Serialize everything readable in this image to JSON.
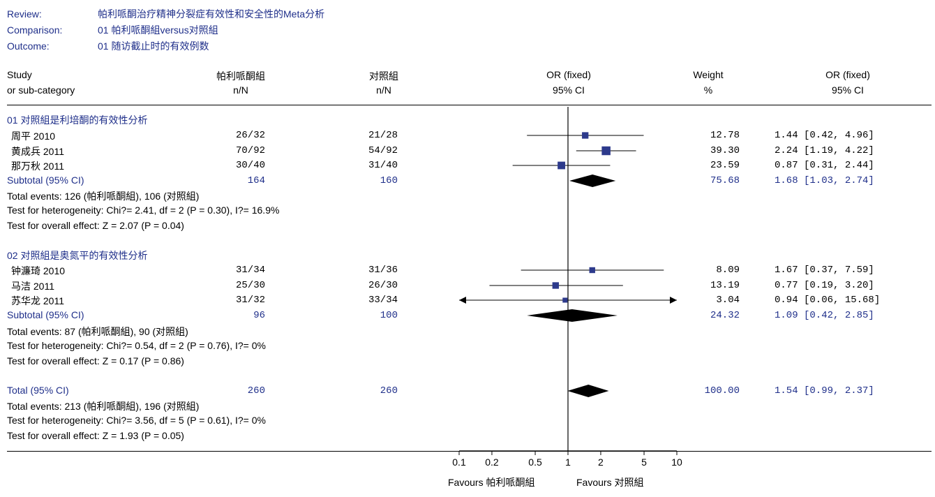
{
  "header": {
    "review_label": "Review:",
    "review_value": "帕利哌酮治疗精神分裂症有效性和安全性的Meta分析",
    "comparison_label": "Comparison:",
    "comparison_value": "01 帕利哌酮組versus对照組",
    "outcome_label": "Outcome:",
    "outcome_value": "01 随访截止时的有效例数"
  },
  "columns": {
    "study_1": "Study",
    "study_2": "or sub-category",
    "treat_1": "帕利哌酮組",
    "treat_2": "n/N",
    "ctrl_1": "对照組",
    "ctrl_2": "n/N",
    "or_1": "OR (fixed)",
    "or_2": "95% CI",
    "weight_1": "Weight",
    "weight_2": "%",
    "orci_1": "OR (fixed)",
    "orci_2": "95% CI"
  },
  "groups": [
    {
      "title": "01 对照組是利培酮的有效性分析",
      "studies": [
        {
          "name": "周平 2010",
          "treat": "26/32",
          "ctrl": "21/28",
          "weight": "12.78",
          "ci_text": "1.44 [0.42, 4.96]"
        },
        {
          "name": "黄成兵 2011",
          "treat": "70/92",
          "ctrl": "54/92",
          "weight": "39.30",
          "ci_text": "2.24 [1.19, 4.22]"
        },
        {
          "name": "那万秋 2011",
          "treat": "30/40",
          "ctrl": "31/40",
          "weight": "23.59",
          "ci_text": "0.87 [0.31, 2.44]"
        }
      ],
      "subtotal": {
        "label": "Subtotal (95% CI)",
        "treat": "164",
        "ctrl": "160",
        "weight": "75.68",
        "ci_text": "1.68 [1.03, 2.74]"
      },
      "events": "Total events: 126 (帕利哌酮組), 106 (对照組)",
      "heterogeneity": "Test for heterogeneity: Chi?= 2.41, df = 2 (P = 0.30), I?= 16.9%",
      "overall": "Test for overall effect: Z = 2.07 (P = 0.04)"
    },
    {
      "title": "02 对照組是奥氮平的有效性分析",
      "studies": [
        {
          "name": "钟濂琦 2010",
          "treat": "31/34",
          "ctrl": "31/36",
          "weight": "8.09",
          "ci_text": "1.67 [0.37, 7.59]"
        },
        {
          "name": "马洁 2011",
          "treat": "25/30",
          "ctrl": "26/30",
          "weight": "13.19",
          "ci_text": "0.77 [0.19, 3.20]"
        },
        {
          "name": "苏华龙 2011",
          "treat": "31/32",
          "ctrl": "33/34",
          "weight": "3.04",
          "ci_text": "0.94 [0.06, 15.68]"
        }
      ],
      "subtotal": {
        "label": "Subtotal (95% CI)",
        "treat": "96",
        "ctrl": "100",
        "weight": "24.32",
        "ci_text": "1.09 [0.42, 2.85]"
      },
      "events": "Total events: 87 (帕利哌酮組), 90 (对照組)",
      "heterogeneity": "Test for heterogeneity: Chi?= 0.54, df = 2 (P = 0.76), I?= 0%",
      "overall": "Test for overall effect: Z = 0.17 (P = 0.86)"
    }
  ],
  "total": {
    "label": "Total (95% CI)",
    "treat": "260",
    "ctrl": "260",
    "weight": "100.00",
    "ci_text": "1.54 [0.99, 2.37]",
    "events": "Total events: 213 (帕利哌酮組), 196 (对照組)",
    "heterogeneity": "Test for heterogeneity: Chi?= 3.56, df = 5 (P = 0.61), I?= 0%",
    "overall": "Test for overall effect: Z = 1.93 (P = 0.05)"
  },
  "axis": {
    "favours_left": "Favours 帕利哌酮組",
    "favours_right": "Favours 对照組"
  },
  "chart_data": {
    "type": "scatter",
    "scale": "log",
    "xlim": [
      0.1,
      10
    ],
    "ticks": [
      0.1,
      0.2,
      0.5,
      1,
      2,
      5,
      10
    ],
    "tick_labels": [
      "0.1",
      "0.2",
      "0.5",
      "1",
      "2",
      "5",
      "10"
    ],
    "studies": [
      {
        "name": "周平 2010",
        "or": 1.44,
        "lo": 0.42,
        "hi": 4.96,
        "weight": 12.78
      },
      {
        "name": "黄成兵 2011",
        "or": 2.24,
        "lo": 1.19,
        "hi": 4.22,
        "weight": 39.3
      },
      {
        "name": "那万秋 2011",
        "or": 0.87,
        "lo": 0.31,
        "hi": 2.44,
        "weight": 23.59
      },
      {
        "name": "钟濂琦 2010",
        "or": 1.67,
        "lo": 0.37,
        "hi": 7.59,
        "weight": 8.09
      },
      {
        "name": "马洁 2011",
        "or": 0.77,
        "lo": 0.19,
        "hi": 3.2,
        "weight": 13.19
      },
      {
        "name": "苏华龙 2011",
        "or": 0.94,
        "lo": 0.06,
        "hi": 15.68,
        "weight": 3.04
      }
    ],
    "subtotals": [
      {
        "label": "Subtotal (95% CI)",
        "or": 1.68,
        "lo": 1.03,
        "hi": 2.74
      },
      {
        "label": "Subtotal (95% CI)",
        "or": 1.09,
        "lo": 0.42,
        "hi": 2.85
      }
    ],
    "total": {
      "label": "Total (95% CI)",
      "or": 1.54,
      "lo": 0.99,
      "hi": 2.37
    },
    "colors": {
      "marker": "#2d3a8c",
      "text_blue": "#1f2f8a"
    }
  }
}
